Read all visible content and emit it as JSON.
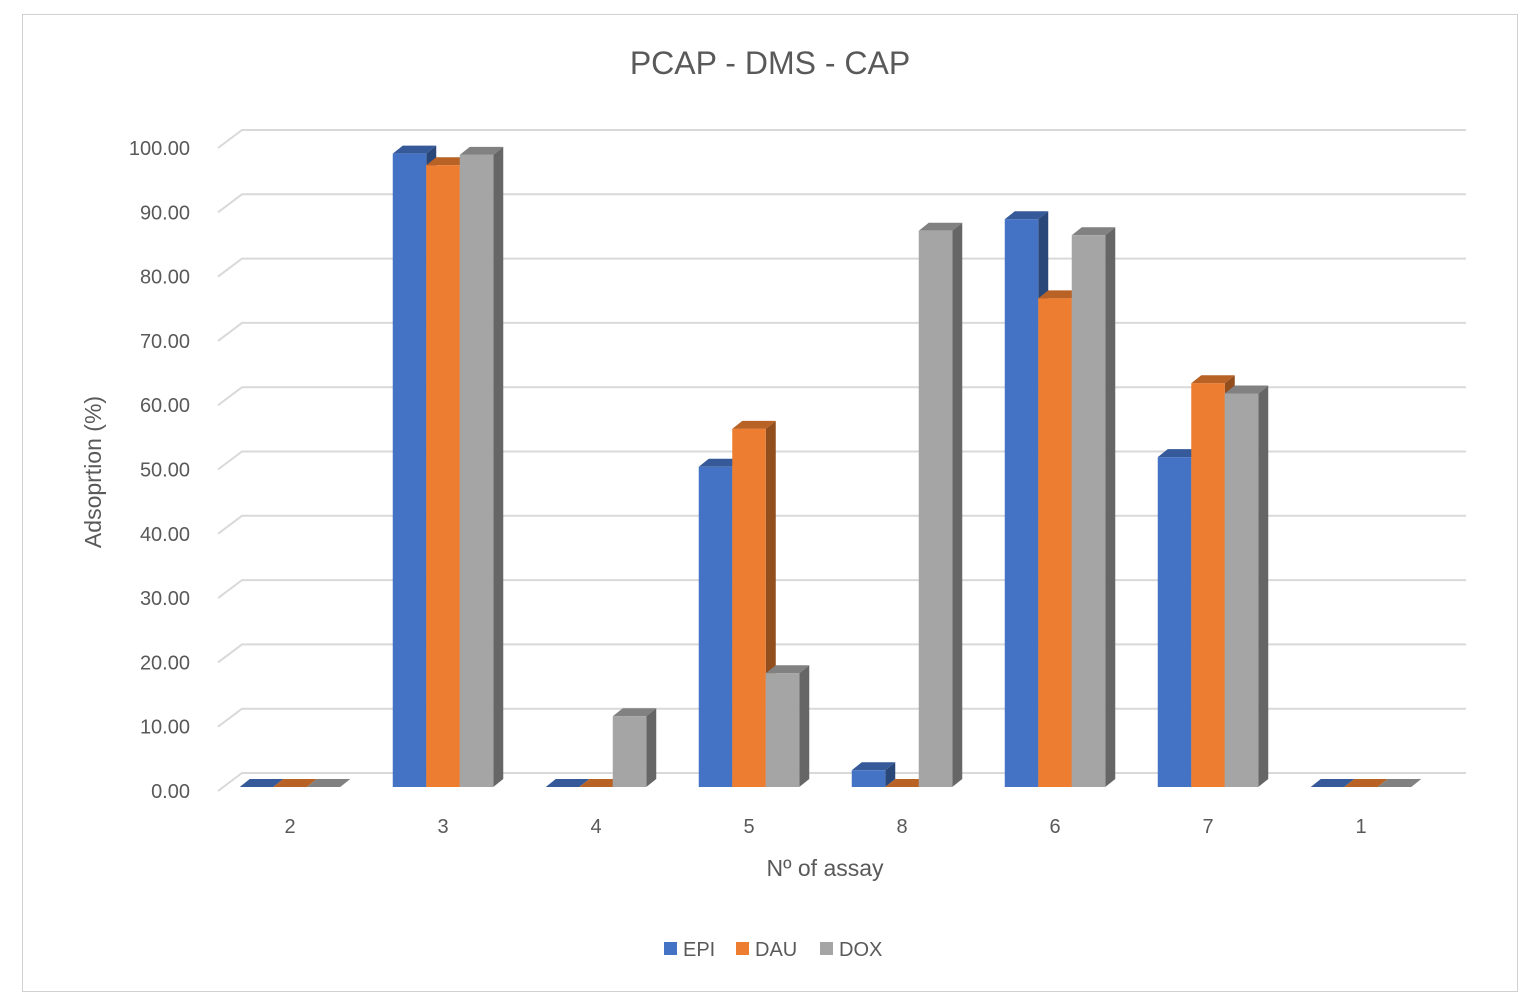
{
  "chart_data": {
    "type": "bar",
    "title": "PCAP - DMS - CAP",
    "xlabel": "Nº of assay",
    "ylabel": "Adsoprtion (%)",
    "categories": [
      "2",
      "3",
      "4",
      "5",
      "8",
      "6",
      "7",
      "1"
    ],
    "series": [
      {
        "name": "EPI",
        "color": "#4472C4",
        "values": [
          0,
          98.5,
          0,
          49.8,
          2.6,
          88.3,
          51.3,
          0
        ]
      },
      {
        "name": "DAU",
        "color": "#ED7D31",
        "values": [
          0,
          96.7,
          0,
          55.7,
          0,
          76.0,
          62.8,
          0
        ]
      },
      {
        "name": "DOX",
        "color": "#A5A5A5",
        "values": [
          0,
          98.3,
          11.0,
          17.7,
          86.5,
          85.8,
          61.2,
          0
        ]
      }
    ],
    "ylim": [
      0,
      100
    ],
    "yticks": [
      "0.00",
      "10.00",
      "20.00",
      "30.00",
      "40.00",
      "50.00",
      "60.00",
      "70.00",
      "80.00",
      "90.00",
      "100.00"
    ],
    "grid": true,
    "legend": "bottom-center",
    "style": "3d-clustered-column"
  }
}
